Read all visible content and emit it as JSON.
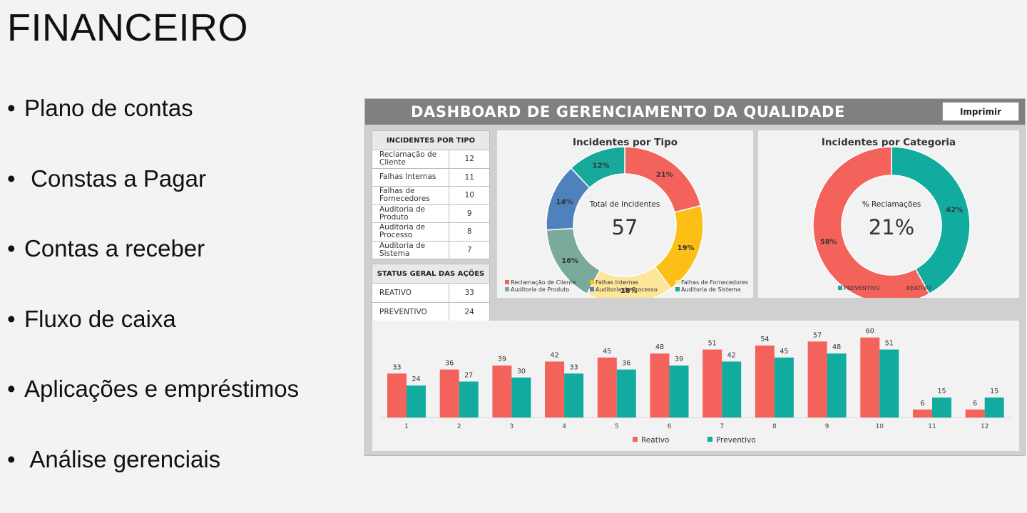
{
  "slide": {
    "title": "FINANCEIRO",
    "bullets": [
      "Plano de contas",
      " Constas a Pagar",
      "Contas a receber",
      "Fluxo de caixa",
      "Aplicações e empréstimos",
      " Análise gerenciais"
    ],
    "bullet_symbol": "•"
  },
  "dashboard": {
    "title": "DASHBOARD DE GERENCIAMENTO DA QUALIDADE",
    "print_label": "Imprimir",
    "incidents_table": {
      "header": "INCIDENTES POR TIPO",
      "rows": [
        {
          "label": "Reclamação de Cliente",
          "value": "12"
        },
        {
          "label": "Falhas Internas",
          "value": "11"
        },
        {
          "label": "Falhas de Fornecedores",
          "value": "10"
        },
        {
          "label": "Auditoria de Produto",
          "value": "9"
        },
        {
          "label": "Auditoria de Processo",
          "value": "8"
        },
        {
          "label": "Auditoria de Sistema",
          "value": "7"
        }
      ]
    },
    "status_table": {
      "header": "STATUS GERAL DAS AÇÕES",
      "rows": [
        {
          "label": "REATIVO",
          "value": "33"
        },
        {
          "label": "PREVENTIVO",
          "value": "24"
        }
      ]
    }
  },
  "chart_data": [
    {
      "type": "pie",
      "title": "Incidentes por Tipo",
      "center_label": "Total de Incidentes",
      "center_value": "57",
      "categories": [
        "Reclamação de Cliente",
        "Falhas Internas",
        "Falhas de Fornecedores",
        "Auditoria de Produto",
        "Auditoria de Processo",
        "Auditoria de Sistema"
      ],
      "values": [
        21,
        19,
        18,
        16,
        14,
        12
      ],
      "labels": [
        "21%",
        "19%",
        "18%",
        "16%",
        "14%",
        "12%"
      ],
      "colors": [
        "#f4625c",
        "#fbbf16",
        "#fde59c",
        "#7aaa9b",
        "#4f81bd",
        "#17a99a"
      ],
      "legend": "bottom"
    },
    {
      "type": "pie",
      "title": "Incidentes por Categoria",
      "center_label": "% Reclamações",
      "center_value": "21%",
      "categories": [
        "PREVENTIVO",
        "REATIVO"
      ],
      "values": [
        42,
        58
      ],
      "labels": [
        "42%",
        "58%"
      ],
      "colors": [
        "#12ab9f",
        "#f4625c"
      ],
      "legend": "bottom"
    },
    {
      "type": "bar",
      "categories": [
        "1",
        "2",
        "3",
        "4",
        "5",
        "6",
        "7",
        "8",
        "9",
        "10",
        "11",
        "12"
      ],
      "series": [
        {
          "name": "Reativo",
          "values": [
            33,
            36,
            39,
            42,
            45,
            48,
            51,
            54,
            57,
            60,
            6,
            6
          ],
          "color": "#f4625c"
        },
        {
          "name": "Preventivo",
          "values": [
            24,
            27,
            30,
            33,
            36,
            39,
            42,
            45,
            48,
            51,
            15,
            15
          ],
          "color": "#12ab9f"
        }
      ],
      "ylim": [
        0,
        62
      ],
      "legend": "bottom",
      "grid": false
    }
  ]
}
